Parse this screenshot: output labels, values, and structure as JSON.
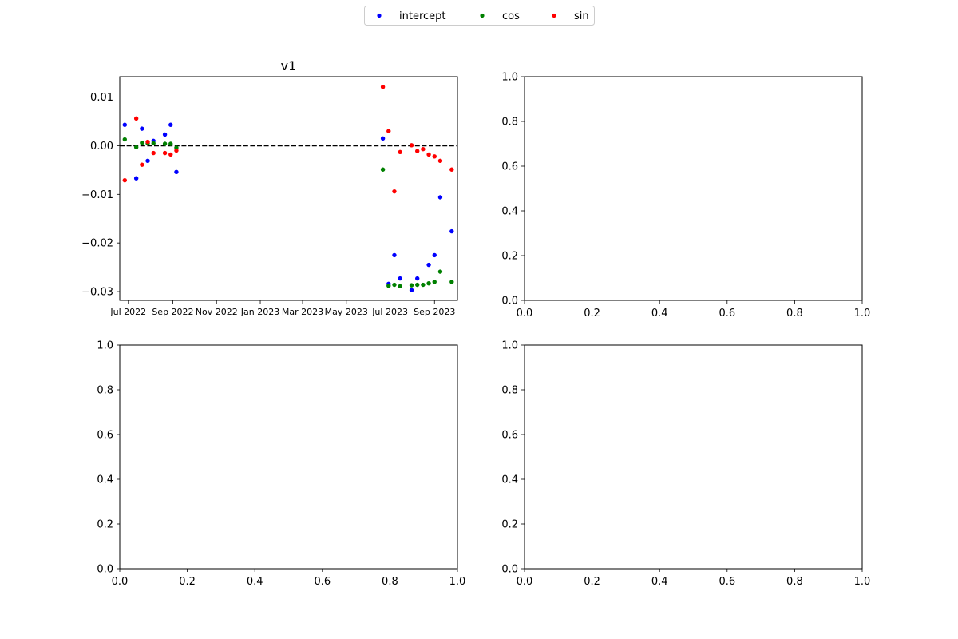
{
  "legend": {
    "location": "top-center",
    "entries": [
      {
        "name": "intercept",
        "color": "#0000ff"
      },
      {
        "name": "cos",
        "color": "#008000"
      },
      {
        "name": "sin",
        "color": "#ff0000"
      }
    ]
  },
  "chart_data": [
    {
      "type": "scatter",
      "title": "v1",
      "xlabel": "",
      "ylabel": "",
      "x_type": "date",
      "xlim": [
        "2022-06-19",
        "2023-10-03"
      ],
      "ylim": [
        -0.0318,
        0.0142
      ],
      "xticks": [
        {
          "value": "2022-07-01",
          "label": "Jul 2022"
        },
        {
          "value": "2022-09-01",
          "label": "Sep 2022"
        },
        {
          "value": "2022-11-01",
          "label": "Nov 2022"
        },
        {
          "value": "2023-01-01",
          "label": "Jan 2023"
        },
        {
          "value": "2023-03-01",
          "label": "Mar 2023"
        },
        {
          "value": "2023-05-01",
          "label": "May 2023"
        },
        {
          "value": "2023-07-01",
          "label": "Jul 2023"
        },
        {
          "value": "2023-09-01",
          "label": "Sep 2023"
        }
      ],
      "yticks": [
        {
          "value": 0.01,
          "label": "0.01"
        },
        {
          "value": 0.0,
          "label": "0.00"
        },
        {
          "value": -0.01,
          "label": "−0.01"
        },
        {
          "value": -0.02,
          "label": "−0.02"
        },
        {
          "value": -0.03,
          "label": "−0.03"
        }
      ],
      "reference_line": {
        "y": 0.0,
        "style": "dashed",
        "color": "#000000"
      },
      "series": [
        {
          "name": "intercept",
          "color": "#0000ff",
          "points": [
            {
              "x": "2022-06-26",
              "y": 0.0043
            },
            {
              "x": "2022-07-12",
              "y": -0.0067
            },
            {
              "x": "2022-07-20",
              "y": 0.0035
            },
            {
              "x": "2022-07-28",
              "y": -0.0031
            },
            {
              "x": "2022-08-05",
              "y": 0.001
            },
            {
              "x": "2022-08-21",
              "y": 0.0023
            },
            {
              "x": "2022-08-29",
              "y": 0.0043
            },
            {
              "x": "2022-09-06",
              "y": -0.0054
            },
            {
              "x": "2023-06-21",
              "y": 0.0015
            },
            {
              "x": "2023-06-29",
              "y": -0.0284
            },
            {
              "x": "2023-07-07",
              "y": -0.0225
            },
            {
              "x": "2023-07-15",
              "y": -0.0273
            },
            {
              "x": "2023-07-31",
              "y": -0.0297
            },
            {
              "x": "2023-08-08",
              "y": -0.0273
            },
            {
              "x": "2023-08-24",
              "y": -0.0245
            },
            {
              "x": "2023-09-01",
              "y": -0.0225
            },
            {
              "x": "2023-09-09",
              "y": -0.0106
            },
            {
              "x": "2023-09-25",
              "y": -0.0176
            }
          ]
        },
        {
          "name": "cos",
          "color": "#008000",
          "points": [
            {
              "x": "2022-06-26",
              "y": 0.0013
            },
            {
              "x": "2022-07-12",
              "y": -0.0003
            },
            {
              "x": "2022-07-20",
              "y": 0.0006
            },
            {
              "x": "2022-07-28",
              "y": 0.0005
            },
            {
              "x": "2022-08-05",
              "y": 0.0005
            },
            {
              "x": "2022-08-21",
              "y": 0.0004
            },
            {
              "x": "2022-08-29",
              "y": 0.0004
            },
            {
              "x": "2022-09-06",
              "y": -0.0004
            },
            {
              "x": "2023-06-21",
              "y": -0.0049
            },
            {
              "x": "2023-06-29",
              "y": -0.0288
            },
            {
              "x": "2023-07-07",
              "y": -0.0286
            },
            {
              "x": "2023-07-15",
              "y": -0.0289
            },
            {
              "x": "2023-07-31",
              "y": -0.0287
            },
            {
              "x": "2023-08-08",
              "y": -0.0286
            },
            {
              "x": "2023-08-16",
              "y": -0.0286
            },
            {
              "x": "2023-08-24",
              "y": -0.0283
            },
            {
              "x": "2023-09-01",
              "y": -0.028
            },
            {
              "x": "2023-09-09",
              "y": -0.0259
            },
            {
              "x": "2023-09-25",
              "y": -0.028
            }
          ]
        },
        {
          "name": "sin",
          "color": "#ff0000",
          "points": [
            {
              "x": "2022-06-26",
              "y": -0.0071
            },
            {
              "x": "2022-07-12",
              "y": 0.0056
            },
            {
              "x": "2022-07-20",
              "y": -0.0039
            },
            {
              "x": "2022-07-28",
              "y": 0.0008
            },
            {
              "x": "2022-08-05",
              "y": -0.0015
            },
            {
              "x": "2022-08-21",
              "y": -0.0015
            },
            {
              "x": "2022-08-29",
              "y": -0.0018
            },
            {
              "x": "2022-09-06",
              "y": -0.001
            },
            {
              "x": "2023-06-21",
              "y": 0.0121
            },
            {
              "x": "2023-06-29",
              "y": 0.003
            },
            {
              "x": "2023-07-07",
              "y": -0.0094
            },
            {
              "x": "2023-07-15",
              "y": -0.0013
            },
            {
              "x": "2023-07-31",
              "y": 0.0001
            },
            {
              "x": "2023-08-08",
              "y": -0.0011
            },
            {
              "x": "2023-08-16",
              "y": -0.0007
            },
            {
              "x": "2023-08-24",
              "y": -0.0018
            },
            {
              "x": "2023-09-01",
              "y": -0.0022
            },
            {
              "x": "2023-09-09",
              "y": -0.0031
            },
            {
              "x": "2023-09-25",
              "y": -0.0049
            }
          ]
        }
      ]
    },
    {
      "type": "scatter",
      "title": "",
      "empty": true,
      "xlim": [
        0,
        1
      ],
      "ylim": [
        0,
        1
      ],
      "xticks": [
        "0.0",
        "0.2",
        "0.4",
        "0.6",
        "0.8",
        "1.0"
      ],
      "yticks": [
        "0.0",
        "0.2",
        "0.4",
        "0.6",
        "0.8",
        "1.0"
      ]
    },
    {
      "type": "scatter",
      "title": "",
      "empty": true,
      "xlim": [
        0,
        1
      ],
      "ylim": [
        0,
        1
      ],
      "xticks": [
        "0.0",
        "0.2",
        "0.4",
        "0.6",
        "0.8",
        "1.0"
      ],
      "yticks": [
        "0.0",
        "0.2",
        "0.4",
        "0.6",
        "0.8",
        "1.0"
      ]
    },
    {
      "type": "scatter",
      "title": "",
      "empty": true,
      "xlim": [
        0,
        1
      ],
      "ylim": [
        0,
        1
      ],
      "xticks": [
        "0.0",
        "0.2",
        "0.4",
        "0.6",
        "0.8",
        "1.0"
      ],
      "yticks": [
        "0.0",
        "0.2",
        "0.4",
        "0.6",
        "0.8",
        "1.0"
      ]
    }
  ]
}
